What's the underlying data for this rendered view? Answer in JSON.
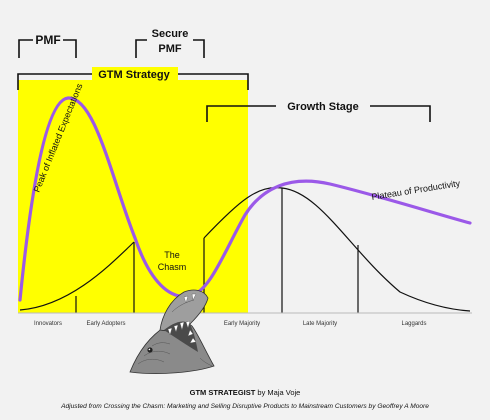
{
  "brackets": {
    "pmf": "PMF",
    "secure_pmf": [
      "Secure",
      "PMF"
    ],
    "gtm_strategy": "GTM Strategy",
    "growth_stage": "Growth Stage"
  },
  "curve_labels": {
    "peak": "Peak of Inflated Expectations",
    "plateau": "Plateau of Productivity",
    "chasm": [
      "The",
      "Chasm"
    ]
  },
  "segments": [
    "Innovators",
    "Early Adopters",
    "Early Majority",
    "Late Majority",
    "Laggards"
  ],
  "credit": {
    "brand": "GTM STRATEGIST",
    "author": " by Maja Voje"
  },
  "caption": "Adjusted from Crossing the Chasm: Marketing and Selling Disruptive Products to Mainstream Customers by Geoffrey A Moore",
  "colors": {
    "highlight": "#ffff00",
    "hype_curve": "#9b59e8",
    "lines": "#111111",
    "background": "#f2f2f2"
  }
}
